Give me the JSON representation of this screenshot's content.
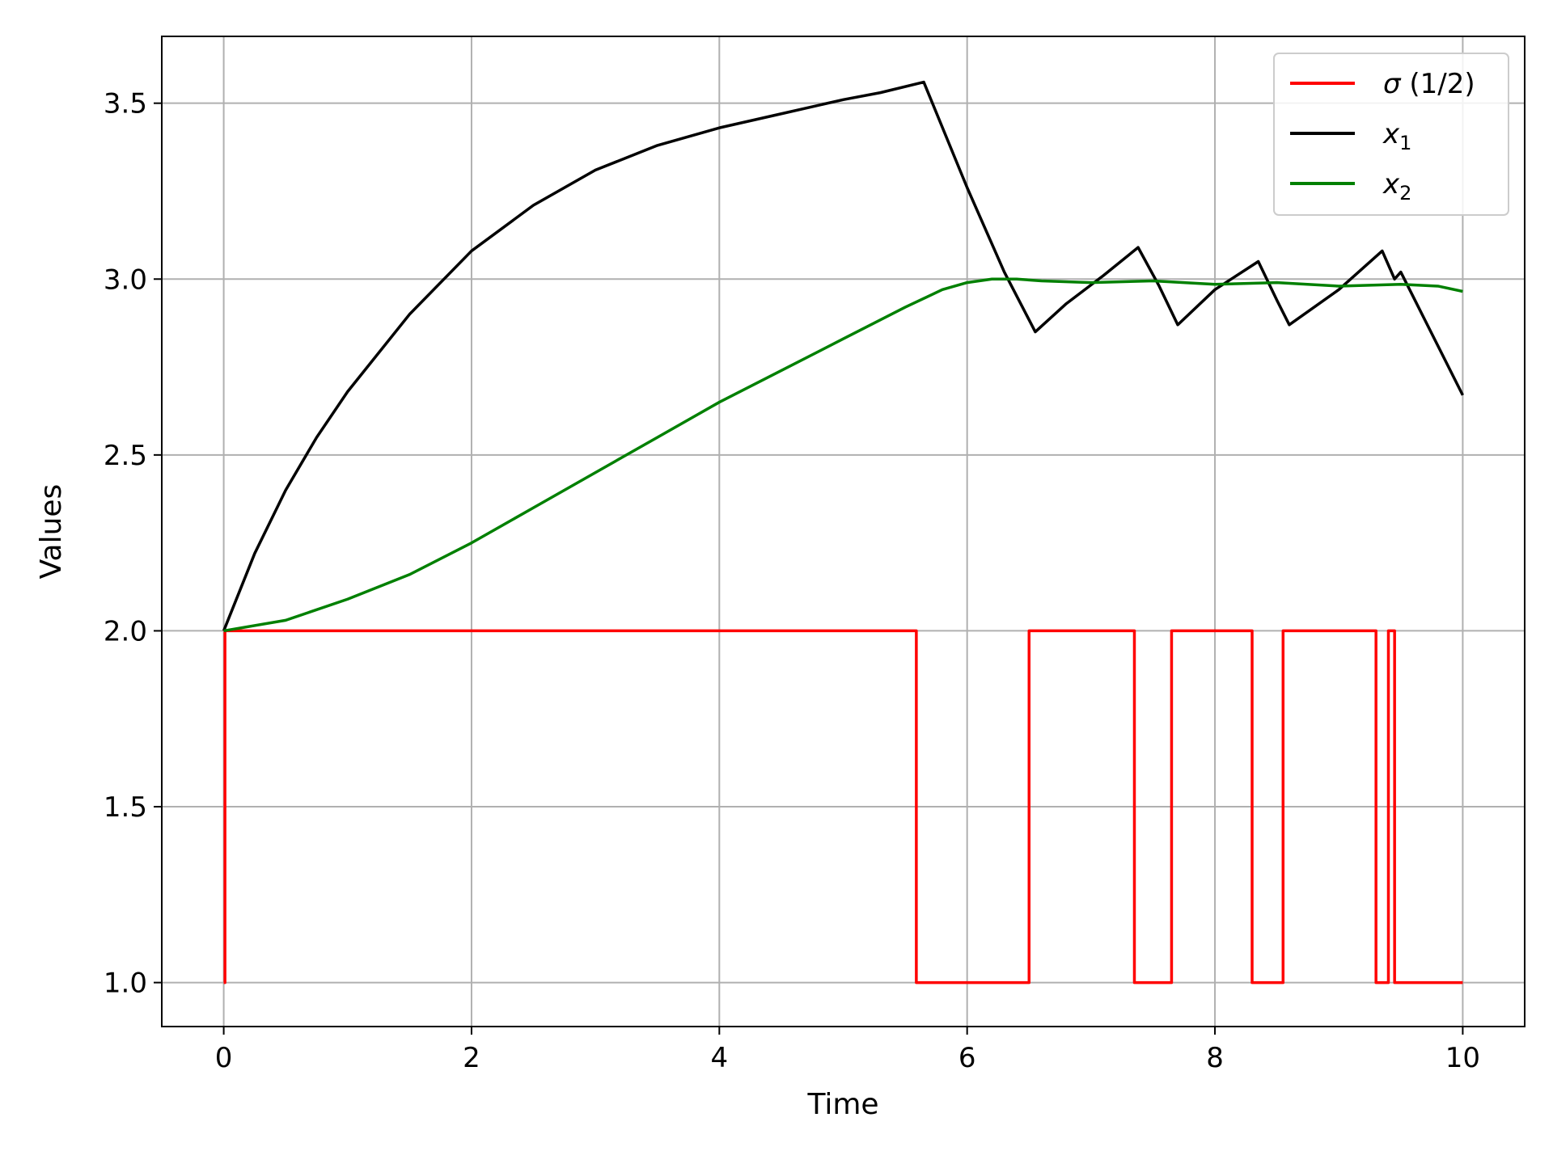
{
  "chart_data": {
    "type": "line",
    "xlabel": "Time",
    "ylabel": "Values",
    "xlim": [
      -0.5,
      10.5
    ],
    "ylim": [
      0.875,
      3.69
    ],
    "x_ticks": [
      0,
      2,
      4,
      6,
      8,
      10
    ],
    "x_tick_labels": [
      "0",
      "2",
      "4",
      "6",
      "8",
      "10"
    ],
    "y_ticks": [
      1.0,
      1.5,
      2.0,
      2.5,
      3.0,
      3.5
    ],
    "y_tick_labels": [
      "1.0",
      "1.5",
      "2.0",
      "2.5",
      "3.0",
      "3.5"
    ],
    "grid": true,
    "legend_position": "top-right",
    "series": [
      {
        "name": "σ (1/2)",
        "legend_main": "σ",
        "legend_rest": " (1/2)",
        "color": "#ff0000",
        "step": true,
        "x": [
          0,
          0.01,
          5.59,
          6.5,
          7.35,
          7.65,
          8.3,
          8.55,
          9.3,
          9.4,
          9.45,
          10.0
        ],
        "y": [
          1,
          2,
          1,
          2,
          1,
          2,
          1,
          2,
          1,
          2,
          1,
          1
        ]
      },
      {
        "name": "x1",
        "legend_main": "x",
        "legend_sub": "1",
        "color": "#000000",
        "x": [
          0,
          0.25,
          0.5,
          0.75,
          1.0,
          1.5,
          2.0,
          2.5,
          3.0,
          3.5,
          4.0,
          4.5,
          5.0,
          5.3,
          5.65,
          6.0,
          6.3,
          6.55,
          6.8,
          7.1,
          7.38,
          7.55,
          7.7,
          8.0,
          8.35,
          8.5,
          8.6,
          9.0,
          9.35,
          9.45,
          9.5,
          9.7,
          10.0
        ],
        "y": [
          2.0,
          2.22,
          2.4,
          2.55,
          2.68,
          2.9,
          3.08,
          3.21,
          3.31,
          3.38,
          3.43,
          3.47,
          3.51,
          3.53,
          3.56,
          3.26,
          3.02,
          2.85,
          2.93,
          3.01,
          3.09,
          2.98,
          2.87,
          2.97,
          3.05,
          2.94,
          2.87,
          2.97,
          3.08,
          3.0,
          3.02,
          2.88,
          2.67
        ]
      },
      {
        "name": "x2",
        "legend_main": "x",
        "legend_sub": "2",
        "color": "#008000",
        "x": [
          0,
          0.5,
          1.0,
          1.5,
          2.0,
          2.5,
          3.0,
          3.5,
          4.0,
          4.5,
          5.0,
          5.5,
          5.8,
          6.0,
          6.2,
          6.4,
          6.6,
          7.0,
          7.5,
          8.0,
          8.5,
          9.0,
          9.5,
          9.8,
          10.0
        ],
        "y": [
          2.0,
          2.03,
          2.09,
          2.16,
          2.25,
          2.35,
          2.45,
          2.55,
          2.65,
          2.74,
          2.83,
          2.92,
          2.97,
          2.99,
          3.0,
          3.0,
          2.995,
          2.99,
          2.995,
          2.985,
          2.99,
          2.98,
          2.985,
          2.98,
          2.965
        ]
      }
    ]
  }
}
